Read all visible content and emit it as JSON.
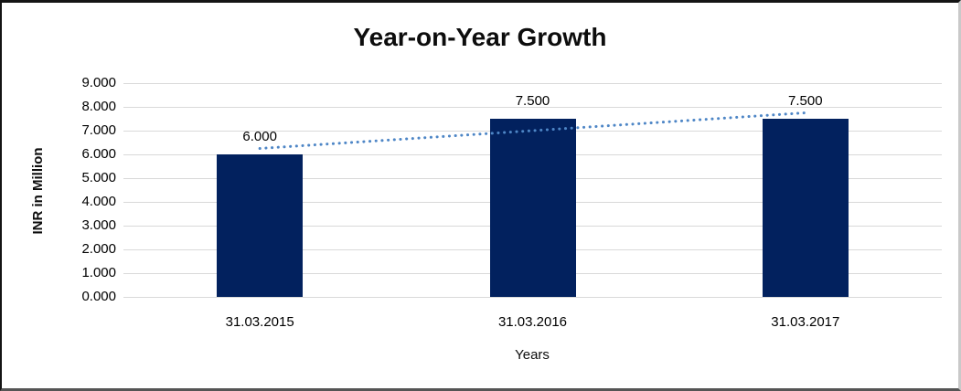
{
  "chart_data": {
    "type": "bar",
    "title": "Year-on-Year Growth",
    "xlabel": "Years",
    "ylabel": "INR in Million",
    "categories": [
      "31.03.2015",
      "31.03.2016",
      "31.03.2017"
    ],
    "values": [
      6.0,
      7.5,
      7.5
    ],
    "data_labels": [
      "6.000",
      "7.500",
      "7.500"
    ],
    "ylim": [
      0,
      9
    ],
    "ytick_labels": [
      "0.000",
      "1.000",
      "2.000",
      "3.000",
      "4.000",
      "5.000",
      "6.000",
      "7.000",
      "8.000",
      "9.000"
    ],
    "grid": true,
    "legend": "none",
    "trendline": {
      "type": "linear",
      "style": "dotted"
    },
    "colors": {
      "bar": "#02215e",
      "trendline": "#4e86c6",
      "gridline": "#d9d9d9",
      "text": "#000000"
    }
  }
}
